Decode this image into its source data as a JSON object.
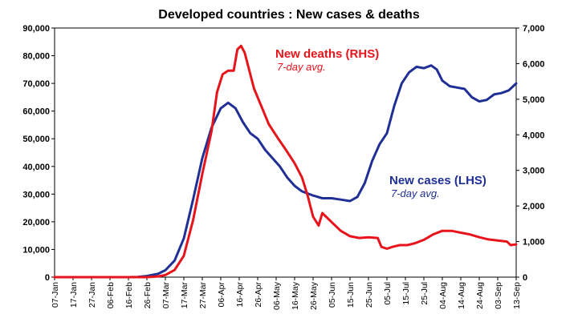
{
  "chart_data": {
    "type": "line",
    "title": "Developed countries : New cases & deaths",
    "x_ticks": [
      "07-Jan",
      "17-Jan",
      "27-Jan",
      "06-Feb",
      "16-Feb",
      "26-Feb",
      "07-Mar",
      "17-Mar",
      "27-Mar",
      "06-Apr",
      "16-Apr",
      "26-Apr",
      "06-May",
      "16-May",
      "26-May",
      "05-Jun",
      "15-Jun",
      "25-Jun",
      "05-Jul",
      "15-Jul",
      "25-Jul",
      "04-Aug",
      "14-Aug",
      "24-Aug",
      "03-Sep",
      "13-Sep"
    ],
    "y_left": {
      "ticks": [
        "0",
        "10,000",
        "20,000",
        "30,000",
        "40,000",
        "50,000",
        "60,000",
        "70,000",
        "80,000",
        "90,000"
      ],
      "range": [
        0,
        90000
      ]
    },
    "y_right": {
      "ticks": [
        "0",
        "1,000",
        "2,000",
        "3,000",
        "4,000",
        "5,000",
        "6,000",
        "7,000"
      ],
      "range": [
        0,
        7000
      ]
    },
    "series": [
      {
        "name": "New cases",
        "axis": "left",
        "color": "#1f2f96",
        "annotation": {
          "bold": "New cases",
          "normal": "(LHS)",
          "sub": "7-day avg."
        },
        "points": [
          [
            "07-Jan",
            0
          ],
          [
            "16-Feb",
            0
          ],
          [
            "21-Feb",
            100
          ],
          [
            "26-Feb",
            400
          ],
          [
            "03-Mar",
            1200
          ],
          [
            "07-Mar",
            2500
          ],
          [
            "12-Mar",
            6000
          ],
          [
            "17-Mar",
            14000
          ],
          [
            "22-Mar",
            28000
          ],
          [
            "27-Mar",
            43000
          ],
          [
            "01-Apr",
            54000
          ],
          [
            "06-Apr",
            61000
          ],
          [
            "10-Apr",
            63000
          ],
          [
            "14-Apr",
            61000
          ],
          [
            "18-Apr",
            56000
          ],
          [
            "22-Apr",
            52000
          ],
          [
            "26-Apr",
            50000
          ],
          [
            "30-Apr",
            46000
          ],
          [
            "04-May",
            43000
          ],
          [
            "08-May",
            40000
          ],
          [
            "12-May",
            36000
          ],
          [
            "16-May",
            33000
          ],
          [
            "20-May",
            31000
          ],
          [
            "26-May",
            29500
          ],
          [
            "31-May",
            28500
          ],
          [
            "05-Jun",
            28500
          ],
          [
            "10-Jun",
            28000
          ],
          [
            "15-Jun",
            27500
          ],
          [
            "19-Jun",
            29000
          ],
          [
            "23-Jun",
            34000
          ],
          [
            "27-Jun",
            42000
          ],
          [
            "01-Jul",
            48000
          ],
          [
            "05-Jul",
            52000
          ],
          [
            "09-Jul",
            62000
          ],
          [
            "13-Jul",
            70000
          ],
          [
            "17-Jul",
            74000
          ],
          [
            "21-Jul",
            76000
          ],
          [
            "25-Jul",
            75500
          ],
          [
            "29-Jul",
            76500
          ],
          [
            "01-Aug",
            75000
          ],
          [
            "04-Aug",
            71000
          ],
          [
            "08-Aug",
            69000
          ],
          [
            "12-Aug",
            68500
          ],
          [
            "16-Aug",
            68000
          ],
          [
            "20-Aug",
            65000
          ],
          [
            "24-Aug",
            63500
          ],
          [
            "28-Aug",
            64000
          ],
          [
            "01-Sep",
            66000
          ],
          [
            "05-Sep",
            66500
          ],
          [
            "09-Sep",
            67500
          ],
          [
            "13-Sep",
            70000
          ]
        ]
      },
      {
        "name": "New deaths",
        "axis": "right",
        "color": "#e8141c",
        "annotation": {
          "bold": "New deaths",
          "normal": "(RHS)",
          "sub": "7-day avg."
        },
        "points": [
          [
            "07-Jan",
            0
          ],
          [
            "26-Feb",
            0
          ],
          [
            "03-Mar",
            20
          ],
          [
            "07-Mar",
            60
          ],
          [
            "12-Mar",
            200
          ],
          [
            "17-Mar",
            600
          ],
          [
            "22-Mar",
            1600
          ],
          [
            "27-Mar",
            2900
          ],
          [
            "01-Apr",
            4100
          ],
          [
            "04-Apr",
            5200
          ],
          [
            "07-Apr",
            5700
          ],
          [
            "10-Apr",
            5800
          ],
          [
            "13-Apr",
            5800
          ],
          [
            "15-Apr",
            6400
          ],
          [
            "17-Apr",
            6500
          ],
          [
            "19-Apr",
            6300
          ],
          [
            "21-Apr",
            5900
          ],
          [
            "24-Apr",
            5300
          ],
          [
            "28-Apr",
            4800
          ],
          [
            "02-May",
            4300
          ],
          [
            "07-May",
            3900
          ],
          [
            "11-May",
            3600
          ],
          [
            "16-May",
            3200
          ],
          [
            "20-May",
            2800
          ],
          [
            "23-May",
            2300
          ],
          [
            "26-May",
            1700
          ],
          [
            "29-May",
            1450
          ],
          [
            "31-May",
            1800
          ],
          [
            "02-Jun",
            1700
          ],
          [
            "06-Jun",
            1500
          ],
          [
            "10-Jun",
            1300
          ],
          [
            "15-Jun",
            1150
          ],
          [
            "20-Jun",
            1100
          ],
          [
            "25-Jun",
            1120
          ],
          [
            "30-Jun",
            1100
          ],
          [
            "02-Jul",
            850
          ],
          [
            "05-Jul",
            800
          ],
          [
            "08-Jul",
            850
          ],
          [
            "12-Jul",
            900
          ],
          [
            "16-Jul",
            900
          ],
          [
            "20-Jul",
            950
          ],
          [
            "25-Jul",
            1050
          ],
          [
            "30-Jul",
            1200
          ],
          [
            "04-Aug",
            1300
          ],
          [
            "09-Aug",
            1300
          ],
          [
            "14-Aug",
            1250
          ],
          [
            "19-Aug",
            1200
          ],
          [
            "24-Aug",
            1120
          ],
          [
            "29-Aug",
            1060
          ],
          [
            "03-Sep",
            1030
          ],
          [
            "08-Sep",
            1000
          ],
          [
            "10-Sep",
            900
          ],
          [
            "13-Sep",
            920
          ]
        ]
      }
    ]
  }
}
